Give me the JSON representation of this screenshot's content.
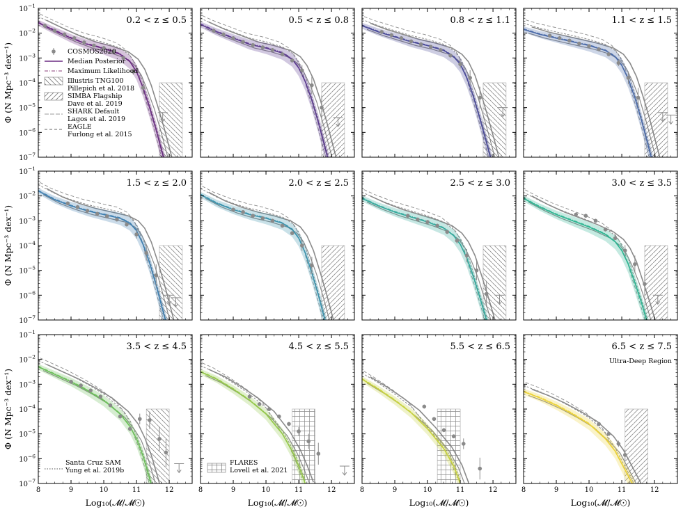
{
  "figure": {
    "ylabel": "Φ (N Mpc⁻³ dex⁻¹)",
    "xlabel": "Log₁₀(𝓜/𝓜☉)",
    "note_panel12": "Ultra-Deep Region"
  },
  "legend_main": [
    {
      "style": "errorbar",
      "label": "COSMOS2020"
    },
    {
      "style": "line",
      "label": "Median Posterior"
    },
    {
      "style": "dashdot",
      "label": "Maximum Likelihood"
    },
    {
      "style": "hatch-backslash",
      "label": "Illustris TNG100",
      "label2": "Pillepich et al. 2018"
    },
    {
      "style": "hatch-slash",
      "label": "SIMBA Flagship",
      "label2": "Dave et al. 2019"
    },
    {
      "style": "thin-dashed",
      "label": "SHARK Default",
      "label2": "Lagos et al. 2019"
    },
    {
      "style": "dashed",
      "label": "EAGLE",
      "label2": "Furlong et al. 2015"
    }
  ],
  "legend_sam": {
    "label": "Santa Cruz SAM",
    "label2": "Yung et al. 2019b"
  },
  "legend_flares": {
    "label": "FLARES",
    "label2": "Lovell et al. 2021"
  },
  "chart_data": [
    {
      "type": "line",
      "title": "0.2 < z ≤ 0.5",
      "color": "#6a2c82",
      "xlim": [
        8,
        12.7
      ],
      "ylim": [
        -7,
        -1
      ],
      "yscale": "log",
      "x": [
        8,
        8.5,
        9,
        9.5,
        10,
        10.5,
        10.8,
        11,
        11.2,
        11.4,
        11.6,
        11.8,
        12
      ],
      "y": [
        -1.58,
        -1.9,
        -2.2,
        -2.45,
        -2.62,
        -2.85,
        -3.15,
        -3.55,
        -4.2,
        -5.0,
        -5.9,
        -6.9,
        -7.9
      ],
      "points": {
        "x": [
          8.2,
          8.5,
          8.8,
          9.1,
          9.4,
          9.7,
          10.0,
          10.3,
          10.6,
          10.9,
          11.2
        ],
        "y": [
          -1.7,
          -1.9,
          -2.05,
          -2.2,
          -2.37,
          -2.5,
          -2.6,
          -2.75,
          -3.0,
          -3.55,
          -4.2
        ]
      },
      "upper_limits": [
        [
          11.8,
          -5.2
        ]
      ]
    },
    {
      "type": "line",
      "title": "0.5 < z ≤ 0.8",
      "color": "#5b3a8e",
      "xlim": [
        8,
        12.7
      ],
      "ylim": [
        -7,
        -1
      ],
      "yscale": "log",
      "x": [
        8,
        8.5,
        9,
        9.5,
        10,
        10.5,
        10.8,
        11,
        11.2,
        11.4,
        11.6,
        11.8,
        12
      ],
      "y": [
        -1.65,
        -1.95,
        -2.2,
        -2.45,
        -2.6,
        -2.8,
        -3.05,
        -3.4,
        -3.95,
        -4.7,
        -5.6,
        -6.6,
        -7.6
      ],
      "points": {
        "x": [
          8.4,
          8.7,
          9.0,
          9.3,
          9.6,
          9.9,
          10.2,
          10.5,
          10.8,
          11.1,
          11.4,
          11.7
        ],
        "y": [
          -1.9,
          -2.05,
          -2.2,
          -2.35,
          -2.48,
          -2.57,
          -2.68,
          -2.85,
          -3.1,
          -3.5,
          -4.1,
          -5.0
        ]
      },
      "upper_limits": [
        [
          12.2,
          -5.4
        ]
      ]
    },
    {
      "type": "line",
      "title": "0.8 < z ≤ 1.1",
      "color": "#4a4a98",
      "xlim": [
        8,
        12.7
      ],
      "ylim": [
        -7,
        -1
      ],
      "yscale": "log",
      "x": [
        8,
        8.5,
        9,
        9.5,
        10,
        10.5,
        10.8,
        11,
        11.2,
        11.4,
        11.6,
        11.8,
        12
      ],
      "y": [
        -1.7,
        -1.95,
        -2.15,
        -2.35,
        -2.5,
        -2.7,
        -2.95,
        -3.25,
        -3.8,
        -4.55,
        -5.45,
        -6.4,
        -7.4
      ],
      "points": {
        "x": [
          8.6,
          8.9,
          9.2,
          9.5,
          9.8,
          10.1,
          10.4,
          10.7,
          11.0,
          11.3,
          11.6
        ],
        "y": [
          -1.95,
          -2.08,
          -2.2,
          -2.33,
          -2.45,
          -2.55,
          -2.68,
          -2.9,
          -3.25,
          -3.8,
          -4.6
        ]
      },
      "upper_limits": [
        [
          12.3,
          -5.0
        ]
      ]
    },
    {
      "type": "line",
      "title": "1.1 < z ≤ 1.5",
      "color": "#4a6aa8",
      "xlim": [
        8,
        12.7
      ],
      "ylim": [
        -7,
        -1
      ],
      "yscale": "log",
      "x": [
        8,
        8.5,
        9,
        9.5,
        10,
        10.5,
        10.8,
        11,
        11.2,
        11.4,
        11.6,
        11.8,
        12
      ],
      "y": [
        -1.85,
        -2.05,
        -2.2,
        -2.35,
        -2.5,
        -2.7,
        -2.95,
        -3.3,
        -3.85,
        -4.6,
        -5.5,
        -6.5,
        -7.5
      ],
      "points": {
        "x": [
          8.8,
          9.1,
          9.4,
          9.7,
          10.0,
          10.3,
          10.6,
          10.9,
          11.2,
          11.5
        ],
        "y": [
          -2.1,
          -2.2,
          -2.3,
          -2.42,
          -2.52,
          -2.65,
          -2.85,
          -3.2,
          -3.8,
          -4.6
        ]
      },
      "upper_limits": [
        [
          12.25,
          -5.2
        ],
        [
          12.5,
          -5.3
        ]
      ]
    },
    {
      "type": "line",
      "title": "1.5 < z ≤ 2.0",
      "color": "#3f7fb0",
      "xlim": [
        8,
        12.7
      ],
      "ylim": [
        -7,
        -1
      ],
      "yscale": "log",
      "x": [
        8,
        8.5,
        9,
        9.5,
        10,
        10.5,
        10.8,
        11,
        11.2,
        11.4,
        11.6,
        11.8,
        12
      ],
      "y": [
        -1.8,
        -2.15,
        -2.4,
        -2.6,
        -2.75,
        -2.9,
        -3.1,
        -3.4,
        -3.95,
        -4.7,
        -5.6,
        -6.6,
        -7.6
      ],
      "points": {
        "x": [
          8.9,
          9.2,
          9.5,
          9.8,
          10.1,
          10.4,
          10.7,
          11.0,
          11.3,
          11.6
        ],
        "y": [
          -2.3,
          -2.45,
          -2.6,
          -2.72,
          -2.82,
          -2.95,
          -3.15,
          -3.55,
          -4.3,
          -5.2
        ]
      },
      "upper_limits": [
        [
          12.0,
          -6.0
        ],
        [
          12.2,
          -6.1
        ]
      ]
    },
    {
      "type": "line",
      "title": "2.0 < z ≤ 2.5",
      "color": "#3c93ad",
      "xlim": [
        8,
        12.7
      ],
      "ylim": [
        -7,
        -1
      ],
      "yscale": "log",
      "x": [
        8,
        8.5,
        9,
        9.5,
        10,
        10.5,
        10.8,
        11,
        11.2,
        11.4,
        11.6,
        11.8,
        12
      ],
      "y": [
        -1.95,
        -2.3,
        -2.55,
        -2.75,
        -2.9,
        -3.1,
        -3.35,
        -3.7,
        -4.3,
        -5.1,
        -6.0,
        -7.0,
        -8.0
      ],
      "points": {
        "x": [
          9.0,
          9.3,
          9.6,
          9.9,
          10.2,
          10.5,
          10.8,
          11.1,
          11.4
        ],
        "y": [
          -2.55,
          -2.65,
          -2.8,
          -2.9,
          -3.0,
          -3.2,
          -3.5,
          -4.0,
          -4.8
        ]
      },
      "upper_limits": []
    },
    {
      "type": "line",
      "title": "2.5 < z ≤ 3.0",
      "color": "#34a99c",
      "xlim": [
        8,
        12.7
      ],
      "ylim": [
        -7,
        -1
      ],
      "yscale": "log",
      "x": [
        8,
        8.5,
        9,
        9.5,
        10,
        10.5,
        10.8,
        11,
        11.2,
        11.4,
        11.6,
        11.8,
        12
      ],
      "y": [
        -2.1,
        -2.4,
        -2.65,
        -2.85,
        -3.05,
        -3.3,
        -3.6,
        -3.95,
        -4.5,
        -5.25,
        -6.1,
        -7.0,
        -8.0
      ],
      "points": {
        "x": [
          9.4,
          9.7,
          10.0,
          10.3,
          10.6,
          10.9,
          11.2,
          11.5,
          11.8
        ],
        "y": [
          -2.8,
          -2.95,
          -3.05,
          -3.2,
          -3.45,
          -3.8,
          -4.4,
          -5.0,
          -5.95
        ]
      },
      "upper_limits": [
        [
          12.2,
          -6.0
        ]
      ]
    },
    {
      "type": "line",
      "title": "3.0 < z ≤ 3.5",
      "color": "#2fb592",
      "xlim": [
        8,
        12.7
      ],
      "ylim": [
        -7,
        -1
      ],
      "yscale": "log",
      "x": [
        8,
        8.5,
        9,
        9.5,
        10,
        10.5,
        10.8,
        11,
        11.2,
        11.4,
        11.6,
        11.8,
        12
      ],
      "y": [
        -2.1,
        -2.45,
        -2.75,
        -3.0,
        -3.25,
        -3.55,
        -3.85,
        -4.2,
        -4.75,
        -5.5,
        -6.3,
        -7.2,
        -8.2
      ],
      "points": {
        "x": [
          9.6,
          9.9,
          10.2,
          10.5,
          10.8,
          11.1,
          11.4,
          11.7
        ],
        "y": [
          -2.75,
          -2.8,
          -3.0,
          -3.35,
          -3.7,
          -4.2,
          -4.75,
          -5.55
        ]
      },
      "upper_limits": [
        [
          12.1,
          -6.0
        ]
      ]
    },
    {
      "type": "line",
      "title": "3.5 < z ≤ 4.5",
      "color": "#6cc05a",
      "xlim": [
        8,
        12.7
      ],
      "ylim": [
        -7,
        -1
      ],
      "yscale": "log",
      "x": [
        8,
        8.5,
        9,
        9.5,
        10,
        10.5,
        10.8,
        11,
        11.2,
        11.4,
        11.6
      ],
      "y": [
        -2.3,
        -2.6,
        -2.9,
        -3.25,
        -3.65,
        -4.2,
        -4.7,
        -5.2,
        -5.9,
        -6.8,
        -7.8
      ],
      "points": {
        "x": [
          9.0,
          9.3,
          9.6,
          9.9,
          10.2,
          10.5,
          10.8,
          11.1,
          11.4,
          11.7,
          11.9
        ],
        "y": [
          -2.9,
          -3.05,
          -3.25,
          -3.5,
          -3.85,
          -4.3,
          -4.8,
          -4.4,
          -4.45,
          -5.2,
          -5.75
        ]
      },
      "upper_limits": [
        [
          12.3,
          -6.2
        ]
      ]
    },
    {
      "type": "line",
      "title": "4.5 < z ≤ 5.5",
      "color": "#95c94a",
      "xlim": [
        8,
        12.7
      ],
      "ylim": [
        -7,
        -1
      ],
      "yscale": "log",
      "x": [
        8,
        8.5,
        9,
        9.5,
        10,
        10.5,
        10.8,
        11,
        11.2
      ],
      "y": [
        -2.5,
        -2.8,
        -3.2,
        -3.65,
        -4.2,
        -5.0,
        -5.7,
        -6.3,
        -7.0
      ],
      "points": {
        "x": [
          9.5,
          9.8,
          10.1,
          10.4,
          10.7,
          11.0,
          11.3,
          11.6
        ],
        "y": [
          -3.5,
          -3.8,
          -4.0,
          -4.3,
          -4.6,
          -4.9,
          -5.3,
          -5.8
        ]
      },
      "upper_limits": [
        [
          12.4,
          -6.3
        ]
      ]
    },
    {
      "type": "line",
      "title": "5.5 < z ≤ 6.5",
      "color": "#c7d23e",
      "xlim": [
        8,
        12.7
      ],
      "ylim": [
        -7,
        -1
      ],
      "yscale": "log",
      "x": [
        8,
        8.5,
        9,
        9.5,
        10,
        10.5,
        10.8,
        11
      ],
      "y": [
        -2.8,
        -3.2,
        -3.65,
        -4.15,
        -4.8,
        -5.6,
        -6.3,
        -7.0
      ],
      "points": {
        "x": [
          9.9,
          10.2,
          10.5,
          10.8,
          11.1,
          11.6
        ],
        "y": [
          -3.9,
          -4.4,
          -4.85,
          -5.1,
          -5.4,
          -6.4
        ]
      },
      "upper_limits": []
    },
    {
      "type": "line",
      "title": "6.5 < z ≤ 7.5",
      "color": "#ecd33a",
      "xlim": [
        8,
        12.7
      ],
      "ylim": [
        -7,
        -1
      ],
      "yscale": "log",
      "x": [
        8,
        8.5,
        9,
        9.5,
        10,
        10.5,
        10.8,
        11,
        11.2,
        11.4
      ],
      "y": [
        -3.3,
        -3.55,
        -3.85,
        -4.2,
        -4.6,
        -5.2,
        -5.7,
        -6.2,
        -6.7,
        -7.2
      ],
      "points": {
        "x": [
          10.3,
          10.6,
          10.9,
          11.1
        ],
        "y": [
          -4.6,
          -5.0,
          -5.4,
          -5.85
        ]
      },
      "upper_limits": []
    }
  ]
}
